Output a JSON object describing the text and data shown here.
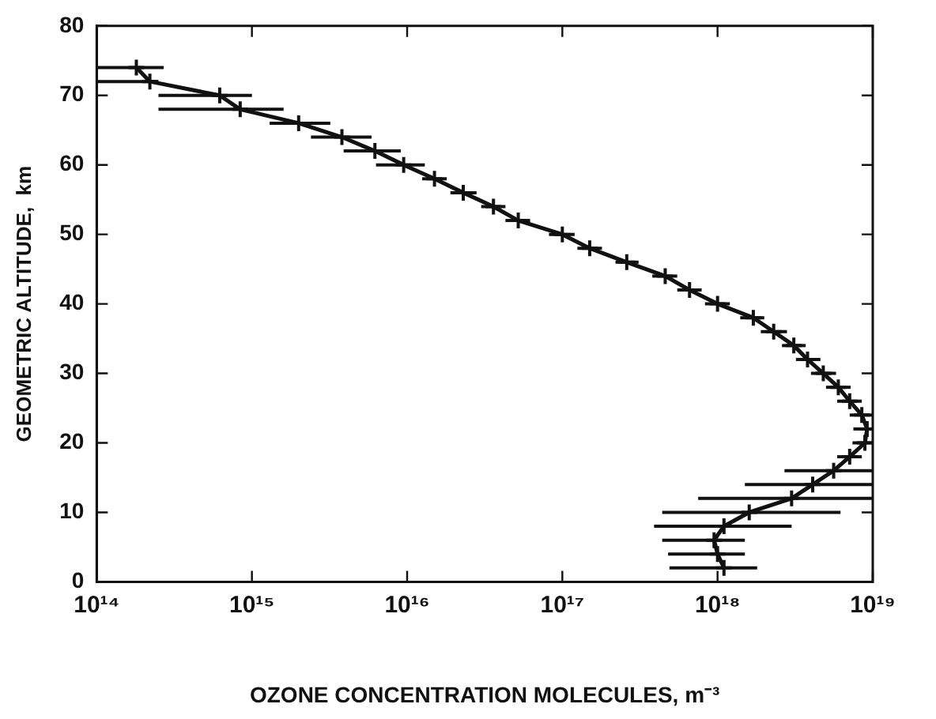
{
  "chart_data": {
    "type": "line",
    "xlabel": "OZONE CONCENTRATION MOLECULES, m⁻³",
    "ylabel": "GEOMETRIC ALTITUDE,  km",
    "log": "x",
    "xlim": [
      100000000000000.0,
      1e+19
    ],
    "xticks": [
      {
        "value": 100000000000000.0,
        "label": "10¹⁴"
      },
      {
        "value": 1000000000000000.0,
        "label": "10¹⁵"
      },
      {
        "value": 1e+16,
        "label": "10¹⁶"
      },
      {
        "value": 1e+17,
        "label": "10¹⁷"
      },
      {
        "value": 1e+18,
        "label": "10¹⁸"
      },
      {
        "value": 1e+19,
        "label": "10¹⁹"
      }
    ],
    "ylim": [
      0,
      80
    ],
    "yticks": [
      0,
      10,
      20,
      30,
      40,
      50,
      60,
      70,
      80
    ],
    "grid": false,
    "legend": false,
    "marker": "cross",
    "line_style": "solid",
    "series": [
      {
        "color": "#111111",
        "x": [
          1.1e+18,
          1e+18,
          9.5e+17,
          1.1e+18,
          1.6e+18,
          3e+18,
          4.1e+18,
          5.6e+18,
          7.1e+18,
          8.9e+18,
          9.2e+18,
          8.5e+18,
          7.1e+18,
          6e+18,
          4.8e+18,
          3.8e+18,
          3.1e+18,
          2.3e+18,
          1.7e+18,
          1e+18,
          6.6e+17,
          4.6e+17,
          2.6e+17,
          1.5e+17,
          1e+17,
          5.2e+16,
          3.6e+16,
          2.3e+16,
          1.5e+16,
          9500000000000000.0,
          6200000000000000.0,
          3800000000000000.0,
          2000000000000000.0,
          840000000000000.0,
          620000000000000.0,
          220000000000000.0,
          180000000000000.0
        ],
        "values": [
          2,
          4,
          6,
          8,
          10,
          12,
          14,
          16,
          18,
          20,
          22,
          24,
          26,
          28,
          30,
          32,
          34,
          36,
          38,
          40,
          42,
          44,
          46,
          48,
          50,
          52,
          54,
          56,
          58,
          60,
          62,
          64,
          66,
          68,
          70,
          72,
          74
        ],
        "xerrors": [
          [
            4.9e+17,
            1.8e+18
          ],
          [
            4.8e+17,
            1.5e+18
          ],
          [
            4.4e+17,
            1.5e+18
          ],
          [
            3.9e+17,
            3e+18
          ],
          [
            4.4e+17,
            6.2e+18
          ],
          [
            7.5e+17,
            1e+19
          ],
          [
            1.5e+18,
            1e+19
          ],
          [
            2.7e+18,
            1e+19
          ],
          [
            5.9e+18,
            8.5e+18
          ],
          [
            7.4e+18,
            1e+19
          ],
          [
            7.5e+18,
            1e+19
          ],
          [
            7.1e+18,
            9.9e+18
          ],
          [
            5.9e+18,
            8.5e+18
          ],
          [
            5e+18,
            7.2e+18
          ],
          [
            4e+18,
            5.8e+18
          ],
          [
            3.2e+18,
            4.6e+18
          ],
          [
            2.6e+18,
            3.7e+18
          ],
          [
            1.9e+18,
            2.8e+18
          ],
          [
            1.4e+18,
            2e+18
          ],
          [
            8.3e+17,
            1.2e+18
          ],
          [
            5.5e+17,
            7.9e+17
          ],
          [
            3.8e+17,
            5.5e+17
          ],
          [
            2.2e+17,
            3.1e+17
          ],
          [
            1.25e+17,
            1.8e+17
          ],
          [
            8.2e+16,
            1.2e+17
          ],
          [
            4.3e+16,
            6.2e+16
          ],
          [
            3e+16,
            4.3e+16
          ],
          [
            1.9e+16,
            2.8e+16
          ],
          [
            1.25e+16,
            1.8e+16
          ],
          [
            6300000000000000.0,
            1.3e+16
          ],
          [
            3900000000000000.0,
            9100000000000000.0
          ],
          [
            2400000000000000.0,
            5900000000000000.0
          ],
          [
            1300000000000000.0,
            3200000000000000.0
          ],
          [
            250000000000000.0,
            1600000000000000.0
          ],
          [
            250000000000000.0,
            1000000000000000.0
          ],
          [
            100000000000000.0,
            250000000000000.0
          ],
          [
            100000000000000.0,
            270000000000000.0
          ]
        ]
      }
    ]
  }
}
